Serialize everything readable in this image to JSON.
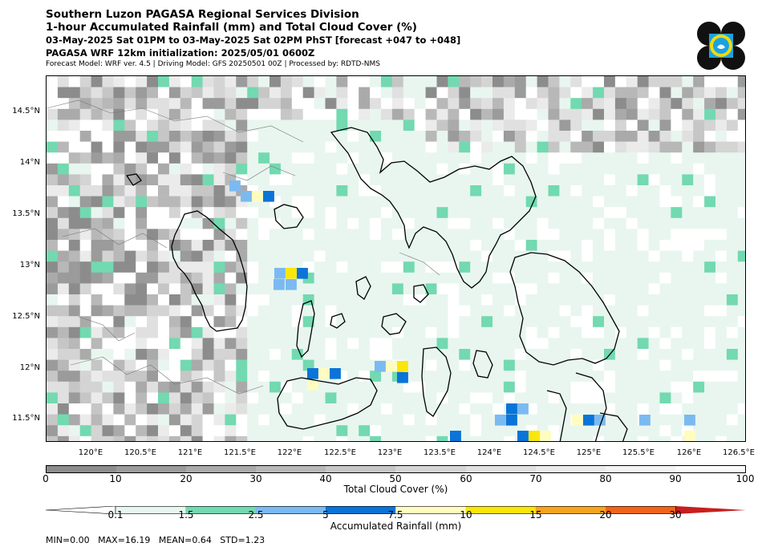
{
  "header": {
    "title": "Southern Luzon PAGASA Regional Services Division",
    "subtitle": "1-hour Accumulated Rainfall (mm) and Total Cloud Cover (%)",
    "period": "03-May-2025 Sat 01PM to 03-May-2025 Sat 02PM PhST [forecast +047 to +048]",
    "model_init": "PAGASA WRF 12km initialization: 2025/05/01 0600Z",
    "model_info": "Forecast Model: WRF ver. 4.5 | Driving Model: GFS 20250501 00Z | Processed by: RDTD-NMS"
  },
  "logo": {
    "icon": "pagasa-logo-icon",
    "colors": [
      "#111111",
      "#1aa3e0",
      "#f5d90a"
    ]
  },
  "map": {
    "lat_labels": [
      "14.5°N",
      "14°N",
      "13.5°N",
      "13°N",
      "12.5°N",
      "12°N",
      "11.5°N"
    ],
    "lon_labels": [
      "120°E",
      "120.5°E",
      "121°E",
      "121.5°E",
      "122°E",
      "122.5°E",
      "123°E",
      "123.5°E",
      "124°E",
      "124.5°E",
      "125°E",
      "125.5°E",
      "126°E",
      "126.5°E"
    ]
  },
  "cloud_colorbar": {
    "title": "Total Cloud Cover (%)",
    "labels": [
      "0",
      "10",
      "20",
      "30",
      "40",
      "50",
      "60",
      "70",
      "80",
      "90",
      "100"
    ],
    "colors": [
      "#8c8c8c",
      "#9b9b9b",
      "#aaaaaa",
      "#b8b8b8",
      "#c6c6c6",
      "#d4d4d4",
      "#e0e0e0",
      "#ebebeb",
      "#f3f3f3",
      "#fafafa"
    ]
  },
  "rain_colorbar": {
    "title": "Accumulated Rainfall (mm)",
    "labels": [
      "0.1",
      "1.5",
      "2.5",
      "5",
      "7.5",
      "10",
      "15",
      "20",
      "30"
    ],
    "colors": [
      "#e8f6ef",
      "#72d9b0",
      "#7bbaf0",
      "#0a74d8",
      "#fffcc0",
      "#fae60a",
      "#f5a41e",
      "#f0641a",
      "#c81e1e"
    ]
  },
  "stats": "MIN=0.00   MAX=16.19   MEAN=0.64   STD=1.23"
}
